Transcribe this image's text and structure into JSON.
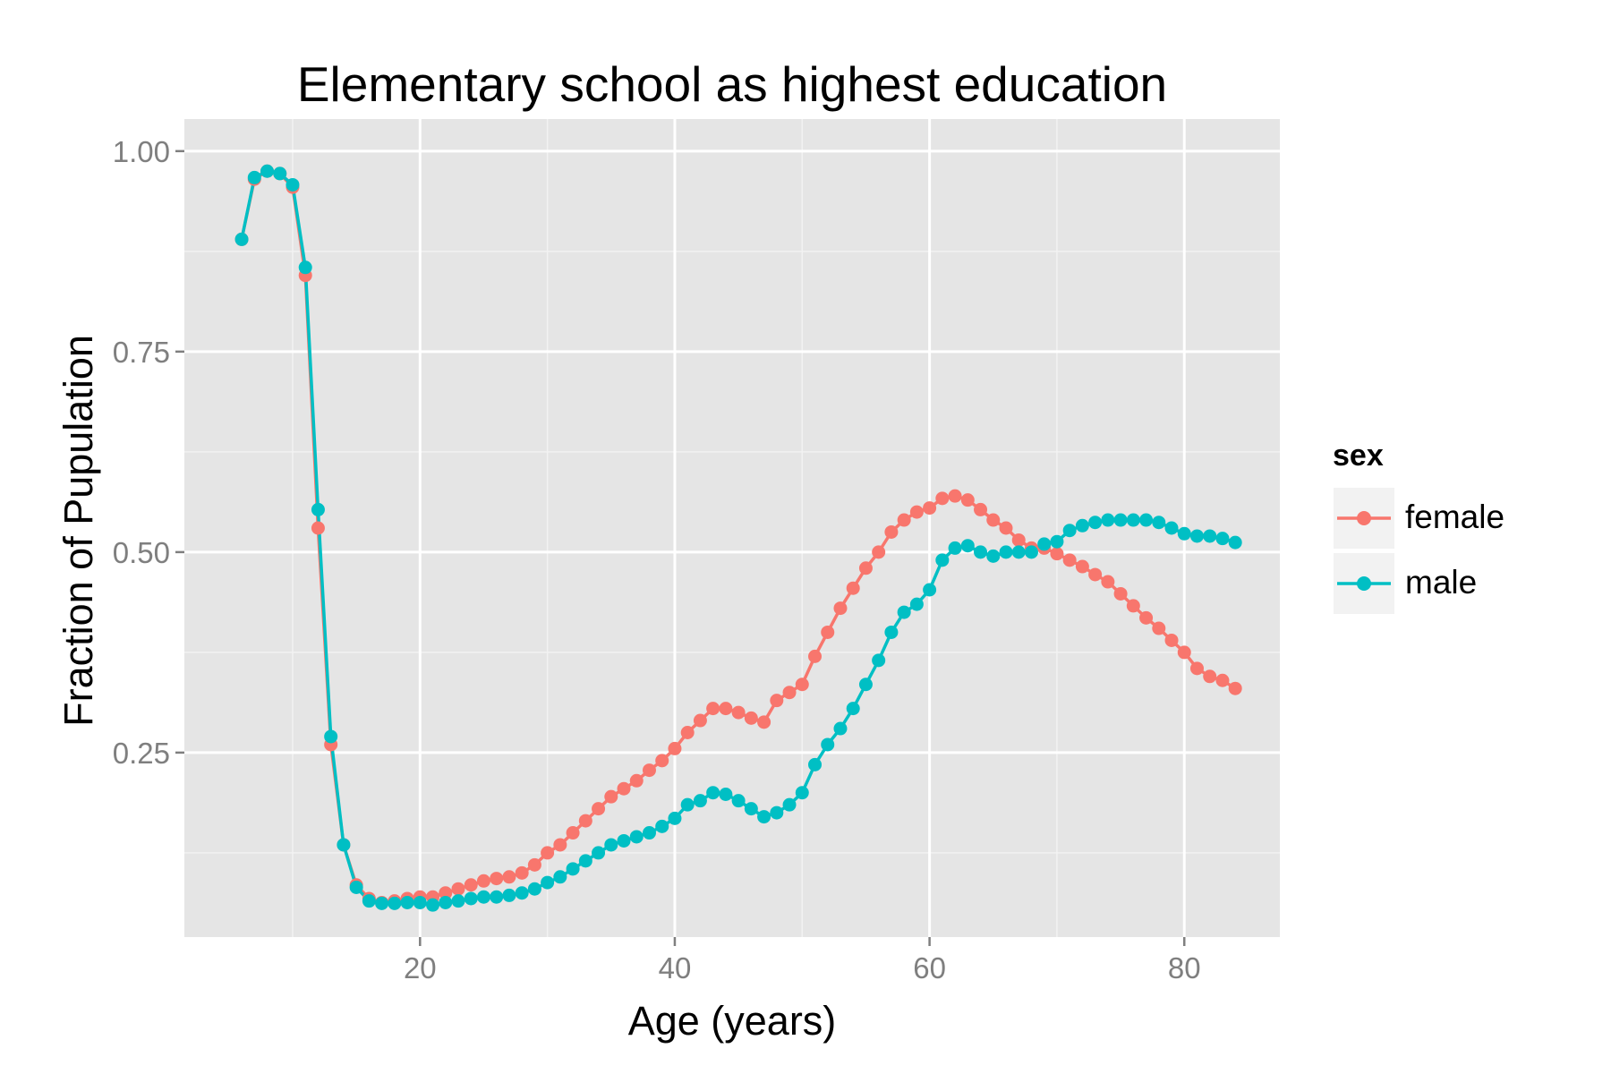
{
  "chart_data": {
    "type": "line",
    "title": "Elementary school as highest education",
    "xlabel": "Age (years)",
    "ylabel": "Fraction of Pupulation",
    "xlim": [
      1.5,
      87.5
    ],
    "ylim": [
      0.02,
      1.04
    ],
    "x_ticks": [
      20,
      40,
      60,
      80
    ],
    "x_tick_labels": [
      "20",
      "40",
      "60",
      "80"
    ],
    "y_ticks": [
      0.25,
      0.5,
      0.75,
      1.0
    ],
    "y_tick_labels": [
      "0.25",
      "0.50",
      "0.75",
      "1.00"
    ],
    "grid": true,
    "legend": {
      "title": "sex",
      "placement": "right"
    },
    "x": [
      6,
      7,
      8,
      9,
      10,
      11,
      12,
      13,
      14,
      15,
      16,
      17,
      18,
      19,
      20,
      21,
      22,
      23,
      24,
      25,
      26,
      27,
      28,
      29,
      30,
      31,
      32,
      33,
      34,
      35,
      36,
      37,
      38,
      39,
      40,
      41,
      42,
      43,
      44,
      45,
      46,
      47,
      48,
      49,
      50,
      51,
      52,
      53,
      54,
      55,
      56,
      57,
      58,
      59,
      60,
      61,
      62,
      63,
      64,
      65,
      66,
      67,
      68,
      69,
      70,
      71,
      72,
      73,
      74,
      75,
      76,
      77,
      78,
      79,
      80,
      81,
      82,
      83,
      84
    ],
    "series": [
      {
        "name": "female",
        "color": "#f8766d",
        "values": [
          0.89,
          0.965,
          0.975,
          0.972,
          0.955,
          0.845,
          0.53,
          0.26,
          0.135,
          0.085,
          0.068,
          0.063,
          0.065,
          0.068,
          0.07,
          0.07,
          0.075,
          0.08,
          0.085,
          0.09,
          0.093,
          0.095,
          0.1,
          0.11,
          0.125,
          0.135,
          0.15,
          0.165,
          0.18,
          0.195,
          0.205,
          0.215,
          0.228,
          0.24,
          0.255,
          0.275,
          0.29,
          0.305,
          0.305,
          0.3,
          0.293,
          0.288,
          0.315,
          0.325,
          0.335,
          0.37,
          0.4,
          0.43,
          0.455,
          0.48,
          0.5,
          0.525,
          0.54,
          0.55,
          0.555,
          0.567,
          0.57,
          0.565,
          0.553,
          0.54,
          0.53,
          0.515,
          0.505,
          0.505,
          0.498,
          0.49,
          0.482,
          0.472,
          0.463,
          0.448,
          0.433,
          0.418,
          0.405,
          0.39,
          0.375,
          0.355,
          0.345,
          0.34,
          0.33
        ]
      },
      {
        "name": "male",
        "color": "#00bfc4",
        "values": [
          0.89,
          0.967,
          0.975,
          0.972,
          0.958,
          0.855,
          0.553,
          0.27,
          0.135,
          0.082,
          0.065,
          0.062,
          0.062,
          0.063,
          0.063,
          0.06,
          0.063,
          0.065,
          0.068,
          0.07,
          0.07,
          0.072,
          0.075,
          0.08,
          0.088,
          0.095,
          0.105,
          0.115,
          0.125,
          0.135,
          0.14,
          0.145,
          0.15,
          0.158,
          0.168,
          0.185,
          0.19,
          0.2,
          0.198,
          0.19,
          0.18,
          0.17,
          0.175,
          0.185,
          0.2,
          0.235,
          0.26,
          0.28,
          0.305,
          0.335,
          0.365,
          0.4,
          0.425,
          0.435,
          0.453,
          0.49,
          0.505,
          0.508,
          0.5,
          0.495,
          0.5,
          0.5,
          0.5,
          0.51,
          0.513,
          0.527,
          0.533,
          0.537,
          0.54,
          0.54,
          0.54,
          0.54,
          0.537,
          0.53,
          0.523,
          0.52,
          0.52,
          0.517,
          0.512
        ]
      }
    ]
  }
}
